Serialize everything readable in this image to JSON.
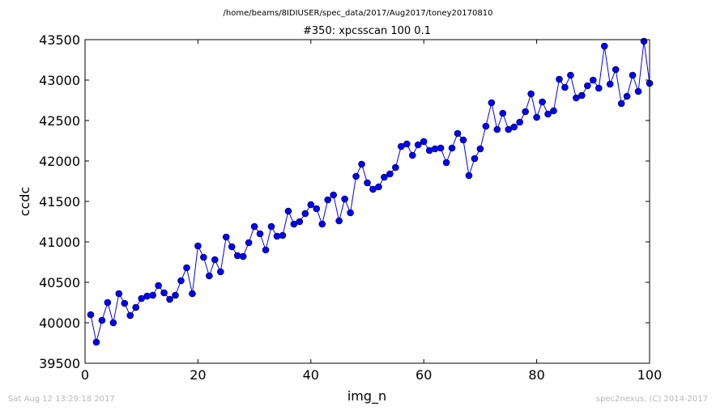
{
  "header": {
    "path": "/home/beams/8IDIUSER/spec_data/2017/Aug2017/toney20170810"
  },
  "footer": {
    "timestamp": "Sat Aug 12 13:29:18 2017",
    "credit": "spec2nexus, (C) 2014-2017"
  },
  "chart_data": {
    "type": "line",
    "title": "#350: xpcsscan 100 0.1",
    "xlabel": "img_n",
    "ylabel": "ccdc",
    "xlim": [
      0,
      100
    ],
    "ylim": [
      39500,
      43500
    ],
    "x_ticks": [
      0,
      20,
      40,
      60,
      80,
      100
    ],
    "y_ticks": [
      39500,
      40000,
      40500,
      41000,
      41500,
      42000,
      42500,
      43000,
      43500
    ],
    "line_color": "#0000ff",
    "marker": "circle",
    "grid": false,
    "series": [
      {
        "x": [
          1,
          2,
          3,
          4,
          5,
          6,
          7,
          8,
          9,
          10,
          11,
          12,
          13,
          14,
          15,
          16,
          17,
          18,
          19,
          20,
          21,
          22,
          23,
          24,
          25,
          26,
          27,
          28,
          29,
          30,
          31,
          32,
          33,
          34,
          35,
          36,
          37,
          38,
          39,
          40,
          41,
          42,
          43,
          44,
          45,
          46,
          47,
          48,
          49,
          50,
          51,
          52,
          53,
          54,
          55,
          56,
          57,
          58,
          59,
          60,
          61,
          62,
          63,
          64,
          65,
          66,
          67,
          68,
          69,
          70,
          71,
          72,
          73,
          74,
          75,
          76,
          77,
          78,
          79,
          80,
          81,
          82,
          83,
          84,
          85,
          86,
          87,
          88,
          89,
          90,
          91,
          92,
          93,
          94,
          95,
          96,
          97,
          98,
          99,
          100
        ],
        "y": [
          40100,
          39760,
          40030,
          40250,
          40000,
          40360,
          40240,
          40090,
          40190,
          40300,
          40330,
          40340,
          40460,
          40370,
          40290,
          40340,
          40520,
          40680,
          40360,
          40950,
          40810,
          40580,
          40780,
          40630,
          41060,
          40940,
          40830,
          40820,
          40990,
          41190,
          41100,
          40900,
          41190,
          41070,
          41080,
          41380,
          41220,
          41250,
          41350,
          41460,
          41410,
          41220,
          41520,
          41580,
          41260,
          41530,
          41360,
          41810,
          41960,
          41730,
          41650,
          41680,
          41800,
          41840,
          41920,
          42180,
          42210,
          42070,
          42200,
          42240,
          42130,
          42150,
          42160,
          41980,
          42160,
          42340,
          42260,
          41820,
          42030,
          42150,
          42430,
          42720,
          42390,
          42590,
          42390,
          42420,
          42480,
          42610,
          42830,
          42540,
          42730,
          42580,
          42620,
          43010,
          42910,
          43060,
          42780,
          42810,
          42930,
          43000,
          42900,
          43420,
          42950,
          43130,
          42710,
          42800,
          43060,
          42860,
          43480,
          42960
        ]
      }
    ]
  }
}
